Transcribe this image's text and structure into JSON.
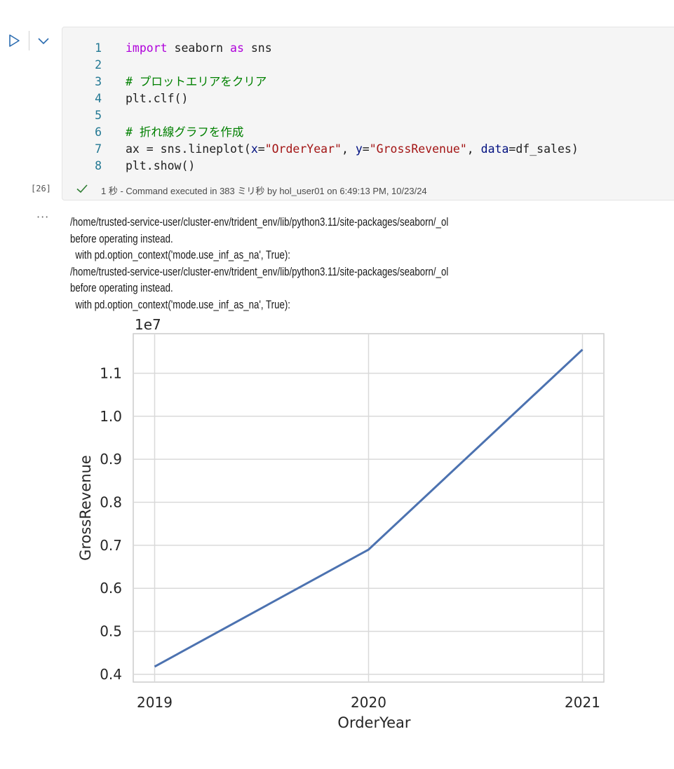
{
  "cell": {
    "execution_count": "[26]",
    "code_lines": [
      {
        "num": "1",
        "parts": [
          {
            "t": "import",
            "c": "kw"
          },
          {
            "t": " seaborn ",
            "c": ""
          },
          {
            "t": "as",
            "c": "kw"
          },
          {
            "t": " sns",
            "c": ""
          }
        ]
      },
      {
        "num": "2",
        "parts": []
      },
      {
        "num": "3",
        "parts": [
          {
            "t": "# プロットエリアをクリア",
            "c": "cmt"
          }
        ]
      },
      {
        "num": "4",
        "parts": [
          {
            "t": "plt.clf()",
            "c": ""
          }
        ]
      },
      {
        "num": "5",
        "parts": []
      },
      {
        "num": "6",
        "parts": [
          {
            "t": "# 折れ線グラフを作成",
            "c": "cmt"
          }
        ]
      },
      {
        "num": "7",
        "parts": [
          {
            "t": "ax = sns.lineplot(",
            "c": ""
          },
          {
            "t": "x",
            "c": "param"
          },
          {
            "t": "=",
            "c": ""
          },
          {
            "t": "\"OrderYear\"",
            "c": "str"
          },
          {
            "t": ", ",
            "c": ""
          },
          {
            "t": "y",
            "c": "param"
          },
          {
            "t": "=",
            "c": ""
          },
          {
            "t": "\"GrossRevenue\"",
            "c": "str"
          },
          {
            "t": ", ",
            "c": ""
          },
          {
            "t": "data",
            "c": "param"
          },
          {
            "t": "=df_sales)",
            "c": ""
          }
        ]
      },
      {
        "num": "8",
        "parts": [
          {
            "t": "plt.show()",
            "c": ""
          }
        ]
      }
    ],
    "status": "1 秒 - Command executed in 383 ミリ秒 by hol_user01 on 6:49:13 PM, 10/23/24"
  },
  "output": {
    "ellipsis": "···",
    "stderr_lines": [
      "/home/trusted-service-user/cluster-env/trident_env/lib/python3.11/site-packages/seaborn/_ol",
      "before operating instead.",
      "  with pd.option_context('mode.use_inf_as_na', True):",
      "/home/trusted-service-user/cluster-env/trident_env/lib/python3.11/site-packages/seaborn/_ol",
      "before operating instead.",
      "  with pd.option_context('mode.use_inf_as_na', True):"
    ]
  },
  "colors": {
    "line": "#4c72b0",
    "grid": "#d9d9d9",
    "axis_frame": "#cccccc",
    "tick_text": "#262626"
  },
  "chart_data": {
    "type": "line",
    "x": [
      2019,
      2020,
      2021
    ],
    "y": [
      4180000,
      6900000,
      11550000
    ],
    "xlabel": "OrderYear",
    "ylabel": "GrossRevenue",
    "offset_label": "1e7",
    "xticks": [
      "2019",
      "2020",
      "2021"
    ],
    "yticks": [
      0.4,
      0.5,
      0.6,
      0.7,
      0.8,
      0.9,
      1.0,
      1.1
    ],
    "ytick_labels": [
      "0.4",
      "0.5",
      "0.6",
      "0.7",
      "0.8",
      "0.9",
      "1.0",
      "1.1"
    ],
    "xlim": [
      2018.9,
      2021.1
    ],
    "ylim": [
      3820000,
      11920000
    ],
    "grid": true
  }
}
